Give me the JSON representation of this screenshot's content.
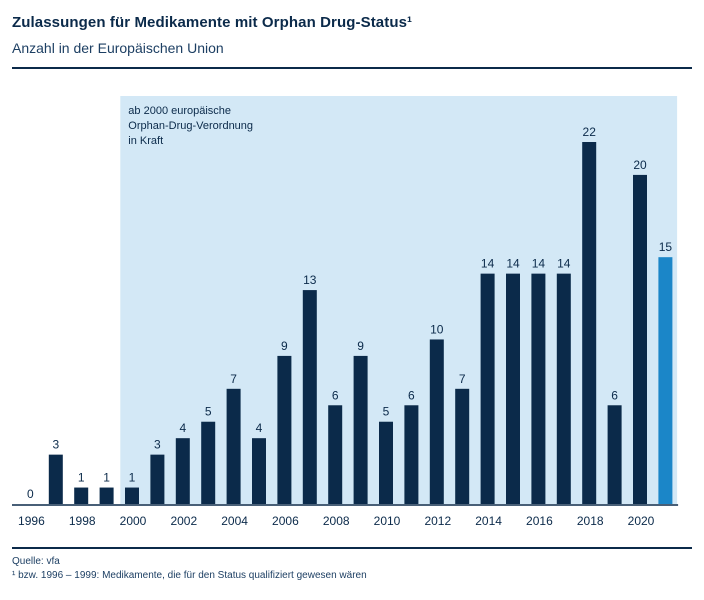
{
  "header": {
    "title": "Zulassungen für Medikamente mit Orphan Drug-Status¹",
    "subtitle": "Anzahl in der Europäischen Union"
  },
  "chart_data": {
    "type": "bar",
    "title": "Zulassungen für Medikamente mit Orphan Drug-Status¹",
    "subtitle": "Anzahl in der Europäischen Union",
    "xlabel": "",
    "ylabel": "",
    "categories": [
      1996,
      1997,
      1998,
      1999,
      2000,
      2001,
      2002,
      2003,
      2004,
      2005,
      2006,
      2007,
      2008,
      2009,
      2010,
      2011,
      2012,
      2013,
      2014,
      2015,
      2016,
      2017,
      2018,
      2019,
      2020,
      2021
    ],
    "values": [
      0,
      3,
      1,
      1,
      1,
      3,
      4,
      5,
      7,
      4,
      9,
      13,
      6,
      9,
      5,
      6,
      10,
      7,
      14,
      14,
      14,
      14,
      22,
      6,
      20,
      15
    ],
    "x_tick_labels": [
      "1996",
      "1998",
      "2000",
      "2002",
      "2004",
      "2006",
      "2008",
      "2010",
      "2012",
      "2014",
      "2016",
      "2018",
      "2020"
    ],
    "ylim": [
      0,
      22
    ],
    "grid": false,
    "highlighted_category": 2021,
    "shaded_region": {
      "from": 2000,
      "to": 2021,
      "label": [
        "ab 2000 europäische",
        "Orphan-Drug-Verordnung",
        "in Kraft"
      ]
    },
    "colors": {
      "bar": "#0b2a4a",
      "highlight_bar": "#1b86c8",
      "shaded_region": "#d3e8f6",
      "axis": "#0b2a4a",
      "text": "#0b2a4a"
    }
  },
  "footer": {
    "source": "Quelle: vfa",
    "footnote": "¹ bzw. 1996 – 1999: Medikamente, die für den Status qualifiziert gewesen wären"
  }
}
